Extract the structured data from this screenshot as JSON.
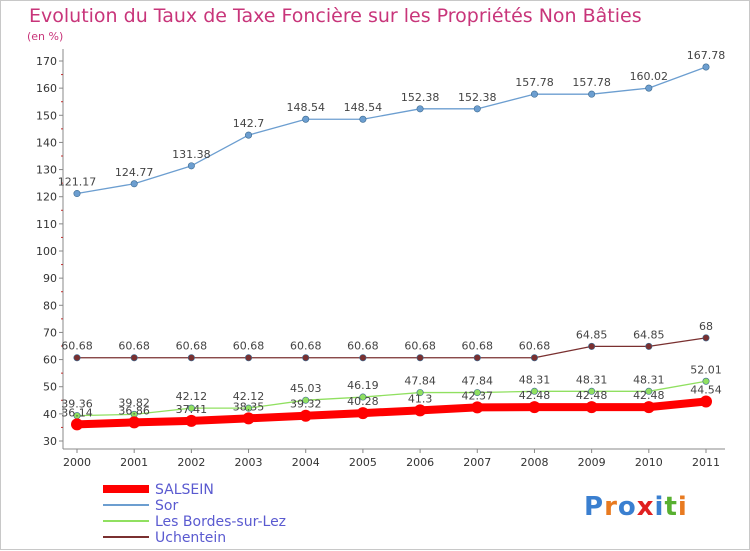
{
  "chart_data": {
    "type": "line",
    "title": "Evolution du Taux de Taxe Foncière sur les Propriétés Non Bâties",
    "unit_label": "(en %)",
    "x": [
      "2000",
      "2001",
      "2002",
      "2003",
      "2004",
      "2005",
      "2006",
      "2007",
      "2008",
      "2009",
      "2010",
      "2011"
    ],
    "ylim": [
      30,
      170
    ],
    "yticks": [
      30,
      40,
      50,
      60,
      70,
      80,
      90,
      100,
      110,
      120,
      130,
      140,
      150,
      160,
      170
    ],
    "grid": false,
    "legend_position": "bottom-left",
    "series": [
      {
        "name": "SALSEIN",
        "color": "#ff0000",
        "values": [
          36.14,
          36.86,
          37.41,
          38.35,
          39.32,
          40.28,
          41.3,
          42.37,
          42.48,
          42.48,
          42.48,
          44.54
        ],
        "labels": [
          "36.14",
          "36.86",
          "37.41",
          "38.35",
          "39.32",
          "40.28",
          "41.3",
          "42.37",
          "42.48",
          "42.48",
          "42.48",
          "44.54"
        ]
      },
      {
        "name": "Sor",
        "color": "#6c9ed0",
        "values": [
          121.17,
          124.77,
          131.38,
          142.7,
          148.54,
          148.54,
          152.38,
          152.38,
          157.78,
          157.78,
          160.02,
          167.78
        ],
        "labels": [
          "121.17",
          "124.77",
          "131.38",
          "142.7",
          "148.54",
          "148.54",
          "152.38",
          "152.38",
          "157.78",
          "157.78",
          "160.02",
          "167.78"
        ]
      },
      {
        "name": "Les Bordes-sur-Lez",
        "color": "#90e060",
        "values": [
          39.36,
          39.82,
          42.12,
          42.12,
          45.03,
          46.19,
          47.84,
          47.84,
          48.31,
          48.31,
          48.31,
          52.01
        ],
        "labels": [
          "39.36",
          "39.82",
          "42.12",
          "42.12",
          "45.03",
          "46.19",
          "47.84",
          "47.84",
          "48.31",
          "48.31",
          "48.31",
          "52.01"
        ]
      },
      {
        "name": "Uchentein",
        "color": "#7a3030",
        "values": [
          60.68,
          60.68,
          60.68,
          60.68,
          60.68,
          60.68,
          60.68,
          60.68,
          60.68,
          64.85,
          64.85,
          68
        ],
        "labels": [
          "60.68",
          "60.68",
          "60.68",
          "60.68",
          "60.68",
          "60.68",
          "60.68",
          "60.68",
          "60.68",
          "64.85",
          "64.85",
          "68"
        ]
      }
    ]
  },
  "logo": {
    "text": "Proxiti",
    "letters": [
      "P",
      "r",
      "o",
      "x",
      "i",
      "t",
      "i"
    ],
    "colors": [
      "#3a7fd0",
      "#e87a20",
      "#3a7fd0",
      "#e02020",
      "#3a7fd0",
      "#58b030",
      "#e87a20"
    ]
  }
}
